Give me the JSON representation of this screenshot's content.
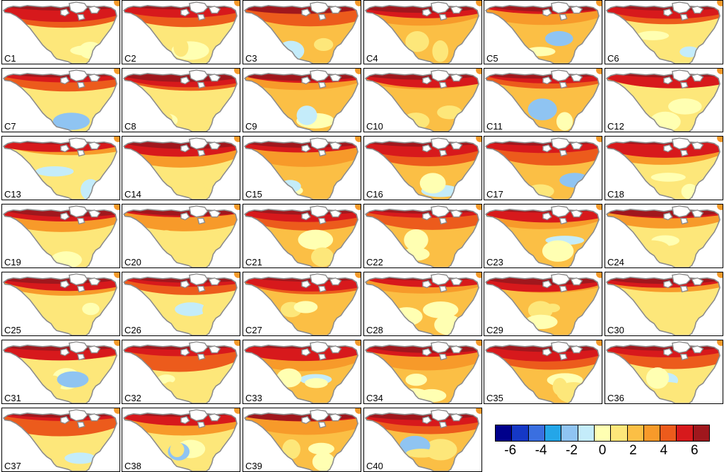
{
  "chart_data": {
    "type": "heatmap",
    "title": "",
    "panels": [
      "C1",
      "C2",
      "C3",
      "C4",
      "C5",
      "C6",
      "C7",
      "C8",
      "C9",
      "C10",
      "C11",
      "C12",
      "C13",
      "C14",
      "C15",
      "C16",
      "C17",
      "C18",
      "C19",
      "C20",
      "C21",
      "C22",
      "C23",
      "C24",
      "C25",
      "C26",
      "C27",
      "C28",
      "C29",
      "C30",
      "C31",
      "C32",
      "C33",
      "C34",
      "C35",
      "C36",
      "C37",
      "C38",
      "C39",
      "C40"
    ],
    "colorbar": {
      "colors": [
        "#00008b",
        "#1538c6",
        "#3a6fe0",
        "#24a6e8",
        "#8fc4f2",
        "#c4ecfa",
        "#ffffb2",
        "#fde77a",
        "#fbbf45",
        "#f79a2a",
        "#ec5b1c",
        "#d7191c",
        "#a0171d"
      ],
      "ticks": [
        "-6",
        "-4",
        "-2",
        "0",
        "2",
        "4",
        "6"
      ],
      "tick_values": [
        -6,
        -4,
        -2,
        0,
        2,
        4,
        6
      ],
      "range": [
        -7,
        7
      ]
    },
    "land_color": "#ffffff",
    "coast_color": "#8c8c8c",
    "grid": false
  }
}
